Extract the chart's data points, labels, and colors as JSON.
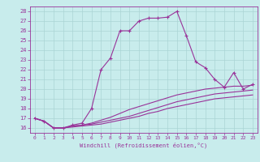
{
  "xlabel": "Windchill (Refroidissement éolien,°C)",
  "bg_color": "#c8ecec",
  "grid_color": "#aad4d4",
  "line_color": "#993399",
  "xlim": [
    -0.5,
    23.5
  ],
  "ylim": [
    15.5,
    28.5
  ],
  "xticks": [
    0,
    1,
    2,
    3,
    4,
    5,
    6,
    7,
    8,
    9,
    10,
    11,
    12,
    13,
    14,
    15,
    16,
    17,
    18,
    19,
    20,
    21,
    22,
    23
  ],
  "yticks": [
    16,
    17,
    18,
    19,
    20,
    21,
    22,
    23,
    24,
    25,
    26,
    27,
    28
  ],
  "series": [
    {
      "x": [
        0,
        1,
        2,
        3,
        4,
        5,
        6,
        7,
        8,
        9,
        10,
        11,
        12,
        13,
        14,
        15,
        16,
        17,
        18,
        19,
        20,
        21,
        22,
        23
      ],
      "y": [
        17.0,
        16.7,
        16.0,
        16.0,
        16.3,
        16.5,
        18.0,
        22.0,
        23.2,
        26.0,
        26.0,
        27.0,
        27.3,
        27.3,
        27.4,
        28.0,
        25.5,
        22.8,
        22.2,
        21.0,
        20.2,
        21.7,
        20.0,
        20.5
      ],
      "marker": "+"
    },
    {
      "x": [
        0,
        1,
        2,
        3,
        4,
        5,
        6,
        7,
        8,
        9,
        10,
        11,
        12,
        13,
        14,
        15,
        16,
        17,
        18,
        19,
        20,
        21,
        22,
        23
      ],
      "y": [
        17.0,
        16.7,
        16.0,
        16.0,
        16.2,
        16.3,
        16.5,
        16.8,
        17.1,
        17.5,
        17.9,
        18.2,
        18.5,
        18.8,
        19.1,
        19.4,
        19.6,
        19.8,
        20.0,
        20.1,
        20.2,
        20.3,
        20.3,
        20.4
      ],
      "marker": null
    },
    {
      "x": [
        0,
        1,
        2,
        3,
        4,
        5,
        6,
        7,
        8,
        9,
        10,
        11,
        12,
        13,
        14,
        15,
        16,
        17,
        18,
        19,
        20,
        21,
        22,
        23
      ],
      "y": [
        17.0,
        16.7,
        16.0,
        16.0,
        16.2,
        16.3,
        16.4,
        16.6,
        16.8,
        17.0,
        17.2,
        17.5,
        17.8,
        18.1,
        18.4,
        18.7,
        18.9,
        19.1,
        19.3,
        19.5,
        19.6,
        19.7,
        19.8,
        19.9
      ],
      "marker": null
    },
    {
      "x": [
        0,
        1,
        2,
        3,
        4,
        5,
        6,
        7,
        8,
        9,
        10,
        11,
        12,
        13,
        14,
        15,
        16,
        17,
        18,
        19,
        20,
        21,
        22,
        23
      ],
      "y": [
        17.0,
        16.7,
        16.0,
        16.0,
        16.1,
        16.2,
        16.3,
        16.4,
        16.6,
        16.8,
        17.0,
        17.2,
        17.5,
        17.7,
        18.0,
        18.2,
        18.4,
        18.6,
        18.8,
        19.0,
        19.1,
        19.2,
        19.3,
        19.4
      ],
      "marker": null
    }
  ]
}
